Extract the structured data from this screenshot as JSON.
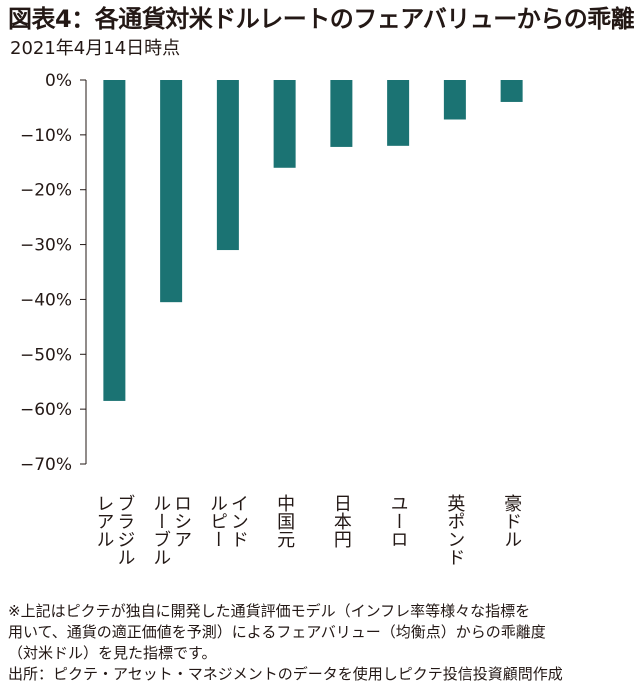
{
  "title": "図表4：各通貨対米ドルレートのフェアバリューからの乖離",
  "subtitle": "2021年4月14日時点",
  "colors": {
    "bar": "#1b7373",
    "text": "#231815",
    "axis": "#231815"
  },
  "chart_data": {
    "type": "bar",
    "categories": [
      "ブラジルレアル",
      "ロシアルーブル",
      "インドルピー",
      "中国元",
      "日本円",
      "ユーロ",
      "英ポンド",
      "豪ドル"
    ],
    "category_label_lines": [
      [
        "ブラジル",
        "レアル"
      ],
      [
        "ロシア",
        "ルーブル"
      ],
      [
        "インド",
        "ルピー"
      ],
      [
        "中国元"
      ],
      [
        "日本円"
      ],
      [
        "ユーロ"
      ],
      [
        "英ポンド"
      ],
      [
        "豪ドル"
      ]
    ],
    "values": [
      -58.5,
      -40.5,
      -31,
      -16,
      -12.2,
      -12,
      -7.2,
      -4
    ],
    "y_ticks": [
      0,
      -10,
      -20,
      -30,
      -40,
      -50,
      -60,
      -70
    ],
    "y_tick_labels": [
      "0%",
      "−10%",
      "−20%",
      "−30%",
      "−40%",
      "−50%",
      "−60%",
      "−70%"
    ],
    "ylim": [
      -70,
      0
    ],
    "grid": false,
    "legend": "none"
  },
  "footnotes": [
    "※上記はピクテが独自に開発した通貨評価モデル（インフレ率等様々な指標を",
    "用いて、通貨の適正価値を予測）によるフェアバリュー（均衡点）からの乖離度",
    "（対米ドル）を見た指標です。",
    "出所：ピクテ・アセット・マネジメントのデータを使用しピクテ投信投資顧問作成"
  ]
}
